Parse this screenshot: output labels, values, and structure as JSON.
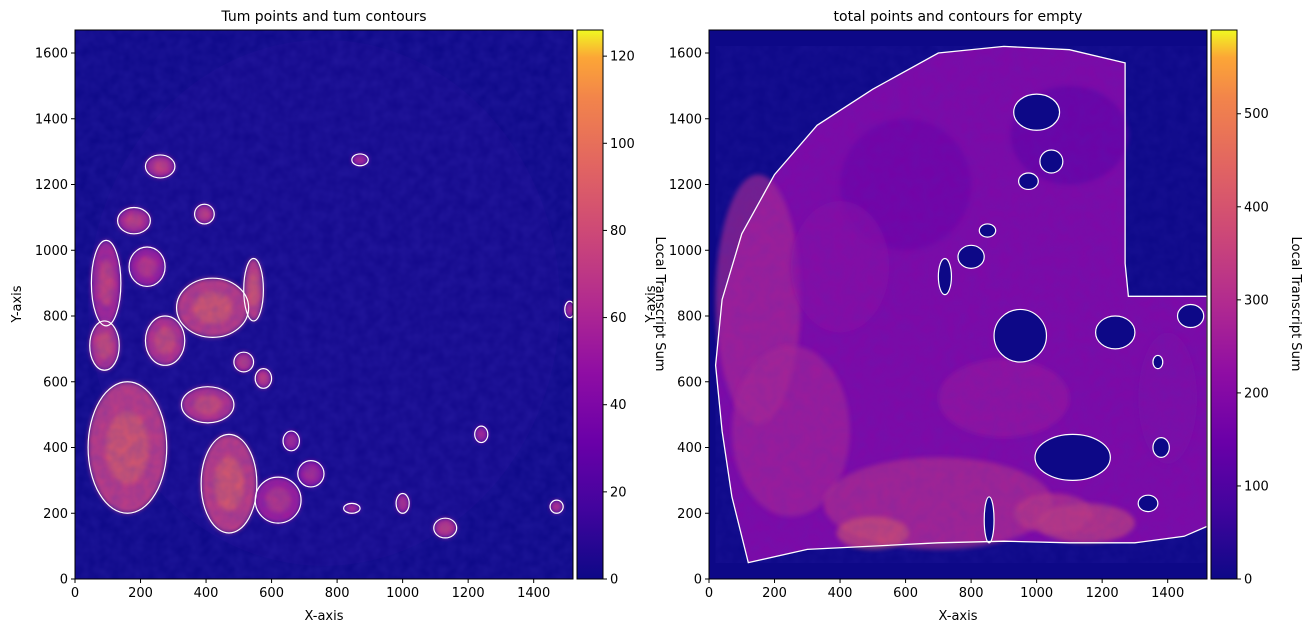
{
  "chart_data": [
    {
      "type": "heatmap",
      "title": "Tum points and tum contours",
      "xlabel": "X-axis",
      "ylabel": "Y-axis",
      "xlim": [
        0,
        1520
      ],
      "ylim": [
        0,
        1670
      ],
      "x_ticks": [
        0,
        200,
        400,
        600,
        800,
        1000,
        1200,
        1400
      ],
      "y_ticks": [
        0,
        200,
        400,
        600,
        800,
        1000,
        1200,
        1400,
        1600
      ],
      "colormap": "plasma",
      "colorbar": {
        "label": "Local Transcript Sum",
        "range": [
          0,
          126
        ],
        "ticks": [
          0,
          20,
          40,
          60,
          80,
          100,
          120
        ]
      },
      "contour_color": "#ffffff",
      "regions": [
        {
          "cx": 260,
          "cy": 1255,
          "rx": 45,
          "ry": 35,
          "level": 55
        },
        {
          "cx": 870,
          "cy": 1275,
          "rx": 25,
          "ry": 18,
          "level": 45
        },
        {
          "cx": 180,
          "cy": 1090,
          "rx": 50,
          "ry": 40,
          "level": 55
        },
        {
          "cx": 395,
          "cy": 1110,
          "rx": 30,
          "ry": 30,
          "level": 55
        },
        {
          "cx": 95,
          "cy": 900,
          "rx": 45,
          "ry": 130,
          "level": 55
        },
        {
          "cx": 220,
          "cy": 950,
          "rx": 55,
          "ry": 60,
          "level": 50
        },
        {
          "cx": 420,
          "cy": 825,
          "rx": 110,
          "ry": 90,
          "level": 65
        },
        {
          "cx": 545,
          "cy": 880,
          "rx": 30,
          "ry": 95,
          "level": 65
        },
        {
          "cx": 275,
          "cy": 725,
          "rx": 60,
          "ry": 75,
          "level": 60
        },
        {
          "cx": 90,
          "cy": 710,
          "rx": 45,
          "ry": 75,
          "level": 60
        },
        {
          "cx": 515,
          "cy": 660,
          "rx": 30,
          "ry": 30,
          "level": 55
        },
        {
          "cx": 575,
          "cy": 610,
          "rx": 25,
          "ry": 30,
          "level": 55
        },
        {
          "cx": 405,
          "cy": 530,
          "rx": 80,
          "ry": 55,
          "level": 60
        },
        {
          "cx": 160,
          "cy": 400,
          "rx": 120,
          "ry": 200,
          "level": 65
        },
        {
          "cx": 470,
          "cy": 290,
          "rx": 85,
          "ry": 150,
          "level": 65
        },
        {
          "cx": 660,
          "cy": 420,
          "rx": 25,
          "ry": 30,
          "level": 45
        },
        {
          "cx": 1240,
          "cy": 440,
          "rx": 20,
          "ry": 25,
          "level": 45
        },
        {
          "cx": 1000,
          "cy": 230,
          "rx": 20,
          "ry": 30,
          "level": 50
        },
        {
          "cx": 845,
          "cy": 215,
          "rx": 25,
          "ry": 15,
          "level": 45
        },
        {
          "cx": 1130,
          "cy": 155,
          "rx": 35,
          "ry": 30,
          "level": 55
        },
        {
          "cx": 1470,
          "cy": 220,
          "rx": 20,
          "ry": 20,
          "level": 50
        },
        {
          "cx": 1510,
          "cy": 820,
          "rx": 15,
          "ry": 25,
          "level": 45
        },
        {
          "cx": 620,
          "cy": 240,
          "rx": 70,
          "ry": 70,
          "level": 50
        },
        {
          "cx": 720,
          "cy": 320,
          "rx": 40,
          "ry": 40,
          "level": 45
        }
      ]
    },
    {
      "type": "heatmap",
      "title": "total points and contours for empty",
      "xlabel": "X-axis",
      "ylabel": "Y-axis",
      "xlim": [
        0,
        1520
      ],
      "ylim": [
        0,
        1670
      ],
      "x_ticks": [
        0,
        200,
        400,
        600,
        800,
        1000,
        1200,
        1400
      ],
      "y_ticks": [
        0,
        200,
        400,
        600,
        800,
        1000,
        1200,
        1400,
        1600
      ],
      "colormap": "plasma",
      "colorbar": {
        "label": "Local Transcript Sum",
        "range": [
          0,
          590
        ],
        "ticks": [
          0,
          100,
          200,
          300,
          400,
          500
        ]
      },
      "contour_color": "#ffffff",
      "tissue_outline": [
        [
          120,
          50
        ],
        [
          300,
          90
        ],
        [
          500,
          100
        ],
        [
          700,
          110
        ],
        [
          900,
          115
        ],
        [
          1100,
          110
        ],
        [
          1300,
          110
        ],
        [
          1450,
          130
        ],
        [
          1520,
          160
        ],
        [
          1520,
          860
        ],
        [
          1280,
          860
        ],
        [
          1270,
          960
        ],
        [
          1270,
          1570
        ],
        [
          1100,
          1610
        ],
        [
          900,
          1620
        ],
        [
          700,
          1600
        ],
        [
          500,
          1490
        ],
        [
          330,
          1380
        ],
        [
          200,
          1230
        ],
        [
          100,
          1050
        ],
        [
          40,
          850
        ],
        [
          20,
          650
        ],
        [
          40,
          450
        ],
        [
          70,
          250
        ],
        [
          120,
          50
        ]
      ],
      "holes": [
        {
          "cx": 1000,
          "cy": 1420,
          "rx": 70,
          "ry": 55
        },
        {
          "cx": 1110,
          "cy": 370,
          "rx": 115,
          "ry": 70
        },
        {
          "cx": 950,
          "cy": 740,
          "rx": 80,
          "ry": 80
        },
        {
          "cx": 800,
          "cy": 980,
          "rx": 40,
          "ry": 35
        },
        {
          "cx": 1240,
          "cy": 750,
          "rx": 60,
          "ry": 50
        },
        {
          "cx": 975,
          "cy": 1210,
          "rx": 30,
          "ry": 25
        },
        {
          "cx": 1380,
          "cy": 400,
          "rx": 25,
          "ry": 30
        },
        {
          "cx": 1045,
          "cy": 1270,
          "rx": 35,
          "ry": 35
        },
        {
          "cx": 1470,
          "cy": 800,
          "rx": 40,
          "ry": 35
        },
        {
          "cx": 720,
          "cy": 920,
          "rx": 20,
          "ry": 55
        },
        {
          "cx": 1370,
          "cy": 660,
          "rx": 15,
          "ry": 20
        },
        {
          "cx": 850,
          "cy": 1060,
          "rx": 25,
          "ry": 20
        },
        {
          "cx": 855,
          "cy": 180,
          "rx": 15,
          "ry": 70
        },
        {
          "cx": 1340,
          "cy": 230,
          "rx": 30,
          "ry": 25
        }
      ]
    }
  ]
}
